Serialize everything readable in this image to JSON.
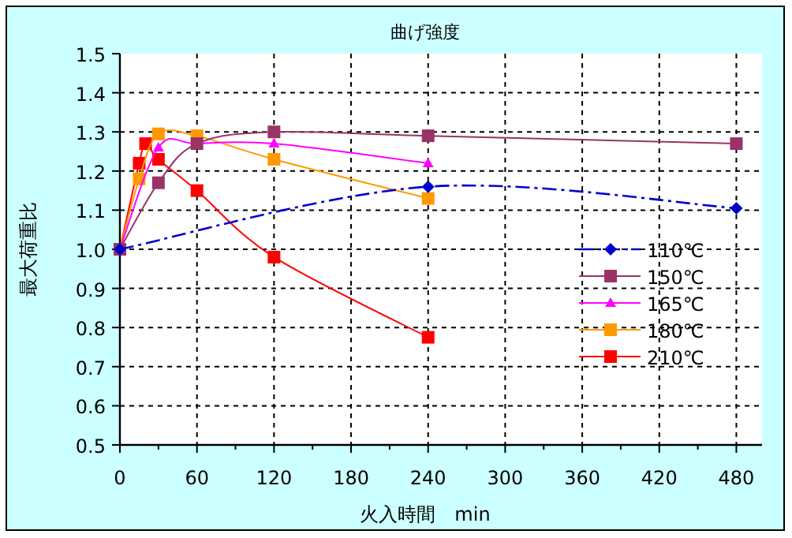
{
  "chart_data": {
    "type": "line",
    "title": "曲げ強度",
    "xlabel": "火入時間　min",
    "ylabel": "最大荷重比",
    "xlim": [
      0,
      500
    ],
    "xticks": [
      0,
      60,
      120,
      180,
      240,
      300,
      360,
      420,
      480
    ],
    "ylim": [
      0.5,
      1.5
    ],
    "yticks": [
      0.5,
      0.6,
      0.7,
      0.8,
      0.9,
      {
        "value": 1.0,
        "label": "1.0"
      },
      1.1,
      1.2,
      1.3,
      1.4,
      1.5
    ],
    "grid": true,
    "legend": "right",
    "series": [
      {
        "name": "110℃",
        "color": "#0000cc",
        "marker": "diamond",
        "line_style": "dashed",
        "x": [
          0,
          240,
          480
        ],
        "values": [
          1.0,
          1.16,
          1.105
        ]
      },
      {
        "name": "150℃",
        "color": "#993366",
        "marker": "square",
        "x": [
          0,
          30,
          60,
          120,
          240,
          480
        ],
        "values": [
          1.0,
          1.17,
          1.27,
          1.3,
          1.29,
          1.27
        ]
      },
      {
        "name": "165℃",
        "color": "#ff00ff",
        "marker": "triangle",
        "x": [
          0,
          30,
          60,
          120,
          240
        ],
        "values": [
          1.0,
          1.26,
          1.27,
          1.27,
          1.22
        ]
      },
      {
        "name": "180℃",
        "color": "#ff9900",
        "marker": "square",
        "x": [
          0,
          15,
          30,
          60,
          120,
          240
        ],
        "values": [
          1.0,
          1.18,
          1.295,
          1.29,
          1.23,
          1.13
        ]
      },
      {
        "name": "210℃",
        "color": "#ff0000",
        "marker": "square",
        "x": [
          0,
          15,
          20,
          30,
          60,
          120,
          240
        ],
        "values": [
          1.0,
          1.22,
          1.27,
          1.23,
          1.15,
          0.98,
          0.775
        ]
      }
    ]
  }
}
